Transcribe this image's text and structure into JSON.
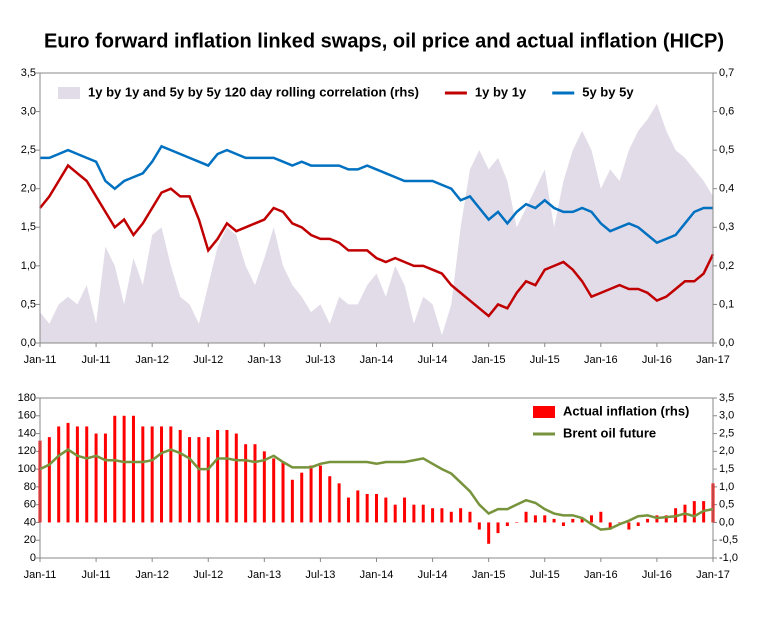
{
  "title": "Euro forward inflation linked swaps, oil price and actual inflation (HICP)",
  "chart_data": [
    {
      "type": "combo",
      "legend": "top",
      "categories": [
        "Jan-11",
        null,
        null,
        null,
        null,
        null,
        "Jul-11",
        null,
        null,
        null,
        null,
        null,
        "Jan-12",
        null,
        null,
        null,
        null,
        null,
        "Jul-12",
        null,
        null,
        null,
        null,
        null,
        "Jan-13",
        null,
        null,
        null,
        null,
        null,
        "Jul-13",
        null,
        null,
        null,
        null,
        null,
        "Jan-14",
        null,
        null,
        null,
        null,
        null,
        "Jul-14",
        null,
        null,
        null,
        null,
        null,
        "Jan-15",
        null,
        null,
        null,
        null,
        null,
        "Jul-15",
        null,
        null,
        null,
        null,
        null,
        "Jan-16",
        null,
        null,
        null,
        null,
        null,
        "Jul-16",
        null,
        null,
        null,
        null,
        null,
        "Jan-17"
      ],
      "ylim": [
        0,
        3.5
      ],
      "yticks": [
        {
          "value": 0,
          "label": "0,0"
        },
        {
          "value": 0.5,
          "label": "0,5"
        },
        {
          "value": 1,
          "label": "1,0"
        },
        {
          "value": 1.5,
          "label": "1,5"
        },
        {
          "value": 2,
          "label": "2,0"
        },
        {
          "value": 2.5,
          "label": "2,5"
        },
        {
          "value": 3,
          "label": "3,0"
        },
        {
          "value": 3.5,
          "label": "3,5"
        }
      ],
      "y2lim": [
        0,
        0.7
      ],
      "y2ticks": [
        {
          "value": 0,
          "label": "0,0"
        },
        {
          "value": 0.1,
          "label": "0,1"
        },
        {
          "value": 0.2,
          "label": "0,2"
        },
        {
          "value": 0.3,
          "label": "0,3"
        },
        {
          "value": 0.4,
          "label": "0,4"
        },
        {
          "value": 0.5,
          "label": "0,5"
        },
        {
          "value": 0.6,
          "label": "0,6"
        },
        {
          "value": 0.7,
          "label": "0,7"
        }
      ],
      "series": [
        {
          "name": "1y by 1y and  5y by 5y 120 day rolling correlation (rhs)",
          "type": "area",
          "axis": "y2",
          "color": "#e2dce9",
          "values": [
            0.08,
            0.05,
            0.1,
            0.12,
            0.1,
            0.15,
            0.05,
            0.25,
            0.2,
            0.1,
            0.22,
            0.15,
            0.28,
            0.3,
            0.2,
            0.12,
            0.1,
            0.05,
            0.15,
            0.25,
            0.3,
            0.28,
            0.2,
            0.15,
            0.22,
            0.3,
            0.2,
            0.15,
            0.12,
            0.08,
            0.1,
            0.05,
            0.12,
            0.1,
            0.1,
            0.15,
            0.18,
            0.12,
            0.2,
            0.15,
            0.05,
            0.12,
            0.1,
            0.02,
            0.1,
            0.3,
            0.45,
            0.5,
            0.45,
            0.48,
            0.42,
            0.3,
            0.35,
            0.4,
            0.45,
            0.3,
            0.42,
            0.5,
            0.55,
            0.5,
            0.4,
            0.45,
            0.42,
            0.5,
            0.55,
            0.58,
            0.62,
            0.55,
            0.5,
            0.48,
            0.45,
            0.42,
            0.38
          ]
        },
        {
          "name": "1y by 1y",
          "type": "line",
          "color": "#c00000",
          "values": [
            1.75,
            1.9,
            2.1,
            2.3,
            2.2,
            2.1,
            1.9,
            1.7,
            1.5,
            1.6,
            1.4,
            1.55,
            1.75,
            1.95,
            2.0,
            1.9,
            1.9,
            1.6,
            1.2,
            1.35,
            1.55,
            1.45,
            1.5,
            1.55,
            1.6,
            1.75,
            1.7,
            1.55,
            1.5,
            1.4,
            1.35,
            1.35,
            1.3,
            1.2,
            1.2,
            1.2,
            1.1,
            1.05,
            1.1,
            1.05,
            1.0,
            1.0,
            0.95,
            0.9,
            0.75,
            0.65,
            0.55,
            0.45,
            0.35,
            0.5,
            0.45,
            0.65,
            0.8,
            0.75,
            0.95,
            1.0,
            1.05,
            0.95,
            0.8,
            0.6,
            0.65,
            0.7,
            0.75,
            0.7,
            0.7,
            0.65,
            0.55,
            0.6,
            0.7,
            0.8,
            0.8,
            0.9,
            1.15
          ]
        },
        {
          "name": "5y by 5y",
          "type": "line",
          "color": "#0070c0",
          "values": [
            2.4,
            2.4,
            2.45,
            2.5,
            2.45,
            2.4,
            2.35,
            2.1,
            2.0,
            2.1,
            2.15,
            2.2,
            2.35,
            2.55,
            2.5,
            2.45,
            2.4,
            2.35,
            2.3,
            2.45,
            2.5,
            2.45,
            2.4,
            2.4,
            2.4,
            2.4,
            2.35,
            2.3,
            2.35,
            2.3,
            2.3,
            2.3,
            2.3,
            2.25,
            2.25,
            2.3,
            2.25,
            2.2,
            2.15,
            2.1,
            2.1,
            2.1,
            2.1,
            2.05,
            2.0,
            1.85,
            1.9,
            1.75,
            1.6,
            1.7,
            1.55,
            1.7,
            1.8,
            1.75,
            1.85,
            1.75,
            1.7,
            1.7,
            1.75,
            1.7,
            1.55,
            1.45,
            1.5,
            1.55,
            1.5,
            1.4,
            1.3,
            1.35,
            1.4,
            1.55,
            1.7,
            1.75,
            1.75
          ]
        }
      ]
    },
    {
      "type": "combo",
      "legend": "top-right",
      "categories": [
        "Jan-11",
        null,
        null,
        null,
        null,
        null,
        "Jul-11",
        null,
        null,
        null,
        null,
        null,
        "Jan-12",
        null,
        null,
        null,
        null,
        null,
        "Jul-12",
        null,
        null,
        null,
        null,
        null,
        "Jan-13",
        null,
        null,
        null,
        null,
        null,
        "Jul-13",
        null,
        null,
        null,
        null,
        null,
        "Jan-14",
        null,
        null,
        null,
        null,
        null,
        "Jul-14",
        null,
        null,
        null,
        null,
        null,
        "Jan-15",
        null,
        null,
        null,
        null,
        null,
        "Jul-15",
        null,
        null,
        null,
        null,
        null,
        "Jan-16",
        null,
        null,
        null,
        null,
        null,
        "Jul-16",
        null,
        null,
        null,
        null,
        null,
        "Jan-17"
      ],
      "ylim": [
        0,
        180
      ],
      "yticks": [
        0,
        20,
        40,
        60,
        80,
        100,
        120,
        140,
        160,
        180
      ],
      "y2lim": [
        -1,
        3.5
      ],
      "y2ticks": [
        {
          "value": -1,
          "label": "-1,0"
        },
        {
          "value": -0.5,
          "label": "-0,5"
        },
        {
          "value": 0,
          "label": "0,0"
        },
        {
          "value": 0.5,
          "label": "0,5"
        },
        {
          "value": 1,
          "label": "1,0"
        },
        {
          "value": 1.5,
          "label": "1,5"
        },
        {
          "value": 2,
          "label": "2,0"
        },
        {
          "value": 2.5,
          "label": "2,5"
        },
        {
          "value": 3,
          "label": "3,0"
        },
        {
          "value": 3.5,
          "label": "3,5"
        }
      ],
      "series": [
        {
          "name": "Actual inflation (rhs)",
          "type": "bar",
          "axis": "y2",
          "color": "#ff0000",
          "values": [
            2.3,
            2.4,
            2.7,
            2.8,
            2.7,
            2.7,
            2.5,
            2.5,
            3.0,
            3.0,
            3.0,
            2.7,
            2.7,
            2.7,
            2.7,
            2.6,
            2.4,
            2.4,
            2.4,
            2.6,
            2.6,
            2.5,
            2.2,
            2.2,
            2.0,
            1.8,
            1.7,
            1.2,
            1.4,
            1.6,
            1.6,
            1.3,
            1.1,
            0.7,
            0.9,
            0.8,
            0.8,
            0.7,
            0.5,
            0.7,
            0.5,
            0.5,
            0.4,
            0.4,
            0.3,
            0.4,
            0.3,
            -0.2,
            -0.6,
            -0.3,
            -0.1,
            0.0,
            0.3,
            0.2,
            0.2,
            0.1,
            -0.1,
            0.1,
            0.1,
            0.2,
            0.3,
            -0.2,
            0.0,
            -0.2,
            -0.1,
            0.1,
            0.2,
            0.2,
            0.4,
            0.5,
            0.6,
            0.6,
            1.1
          ]
        },
        {
          "name": "Brent oil future",
          "type": "line",
          "color": "#77933c",
          "values": [
            100,
            105,
            115,
            122,
            115,
            112,
            115,
            110,
            110,
            108,
            108,
            108,
            110,
            118,
            122,
            118,
            112,
            100,
            100,
            112,
            112,
            110,
            110,
            108,
            110,
            115,
            108,
            102,
            102,
            102,
            106,
            108,
            108,
            108,
            108,
            108,
            106,
            108,
            108,
            108,
            110,
            112,
            106,
            100,
            95,
            85,
            75,
            60,
            50,
            55,
            55,
            60,
            65,
            62,
            55,
            50,
            48,
            48,
            45,
            38,
            32,
            33,
            38,
            42,
            47,
            48,
            45,
            46,
            47,
            50,
            47,
            53,
            55
          ]
        }
      ]
    }
  ]
}
